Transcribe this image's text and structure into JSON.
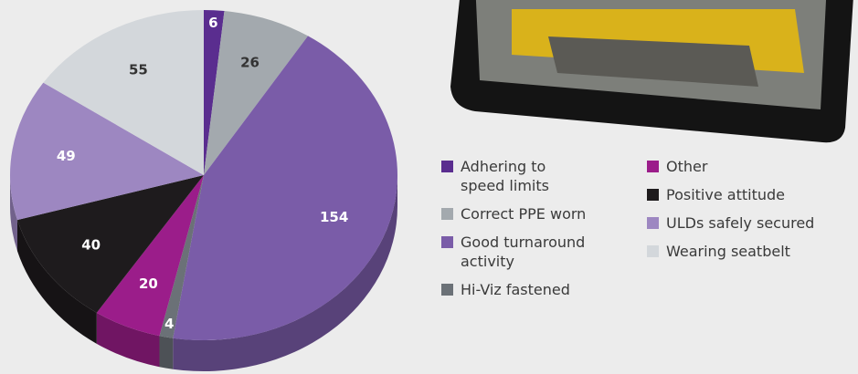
{
  "chart_data": {
    "type": "pie",
    "categories": [
      "Adhering to speed limits",
      "Correct PPE worn",
      "Good turnaround activity",
      "Hi-Viz fastened",
      "Other",
      "Positive attitude",
      "ULDs safely secured",
      "Wearing seatbelt"
    ],
    "values": [
      6,
      26,
      154,
      4,
      20,
      40,
      49,
      55
    ],
    "colors": [
      "#5a2d8f",
      "#a3a9ae",
      "#7a5ca8",
      "#6b7177",
      "#9b1d8a",
      "#1e1b1d",
      "#9d87c1",
      "#d3d7db"
    ]
  }
}
